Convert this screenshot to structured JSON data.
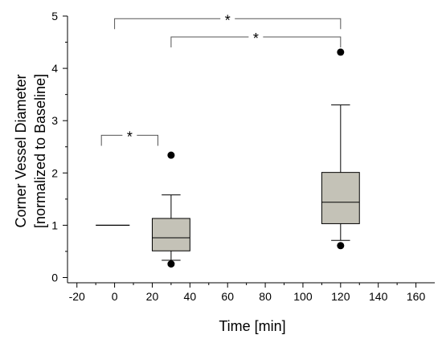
{
  "chart_data": {
    "type": "boxplot",
    "xlabel": "Time [min]",
    "ylabel_line1": "Corner Vessel Diameter",
    "ylabel_line2": "[normalized to Baseline]",
    "xlim": [
      -25,
      170
    ],
    "ylim": [
      -0.1,
      5
    ],
    "x_ticks": [
      -20,
      0,
      20,
      40,
      60,
      80,
      100,
      120,
      140,
      160
    ],
    "y_ticks": [
      0,
      1,
      2,
      3,
      4,
      5
    ],
    "grid": false,
    "baseline": {
      "x": 0,
      "value": 1.0,
      "x_from": -10,
      "x_to": 8
    },
    "boxes": [
      {
        "x": 30,
        "whisker_low": 0.33,
        "q1": 0.51,
        "median": 0.76,
        "q3": 1.13,
        "whisker_high": 1.58,
        "outliers": [
          2.34,
          0.26
        ]
      },
      {
        "x": 120,
        "whisker_low": 0.71,
        "q1": 1.03,
        "median": 1.44,
        "q3": 2.01,
        "whisker_high": 3.3,
        "outliers": [
          4.31,
          0.61
        ]
      }
    ],
    "significance": [
      {
        "x_from": -7,
        "x_to": 23,
        "y_bar": 2.72,
        "y_tip": 2.52,
        "label": "*"
      },
      {
        "x_from": 0,
        "x_to": 120,
        "y_bar": 4.95,
        "y_tip": 4.75,
        "label": "*"
      },
      {
        "x_from": 30,
        "x_to": 120,
        "y_bar": 4.6,
        "y_tip": 4.4,
        "label": "*"
      }
    ],
    "colors": {
      "box_fill": "#c4c2b7",
      "line": "#000000",
      "bracket": "#555555"
    }
  }
}
